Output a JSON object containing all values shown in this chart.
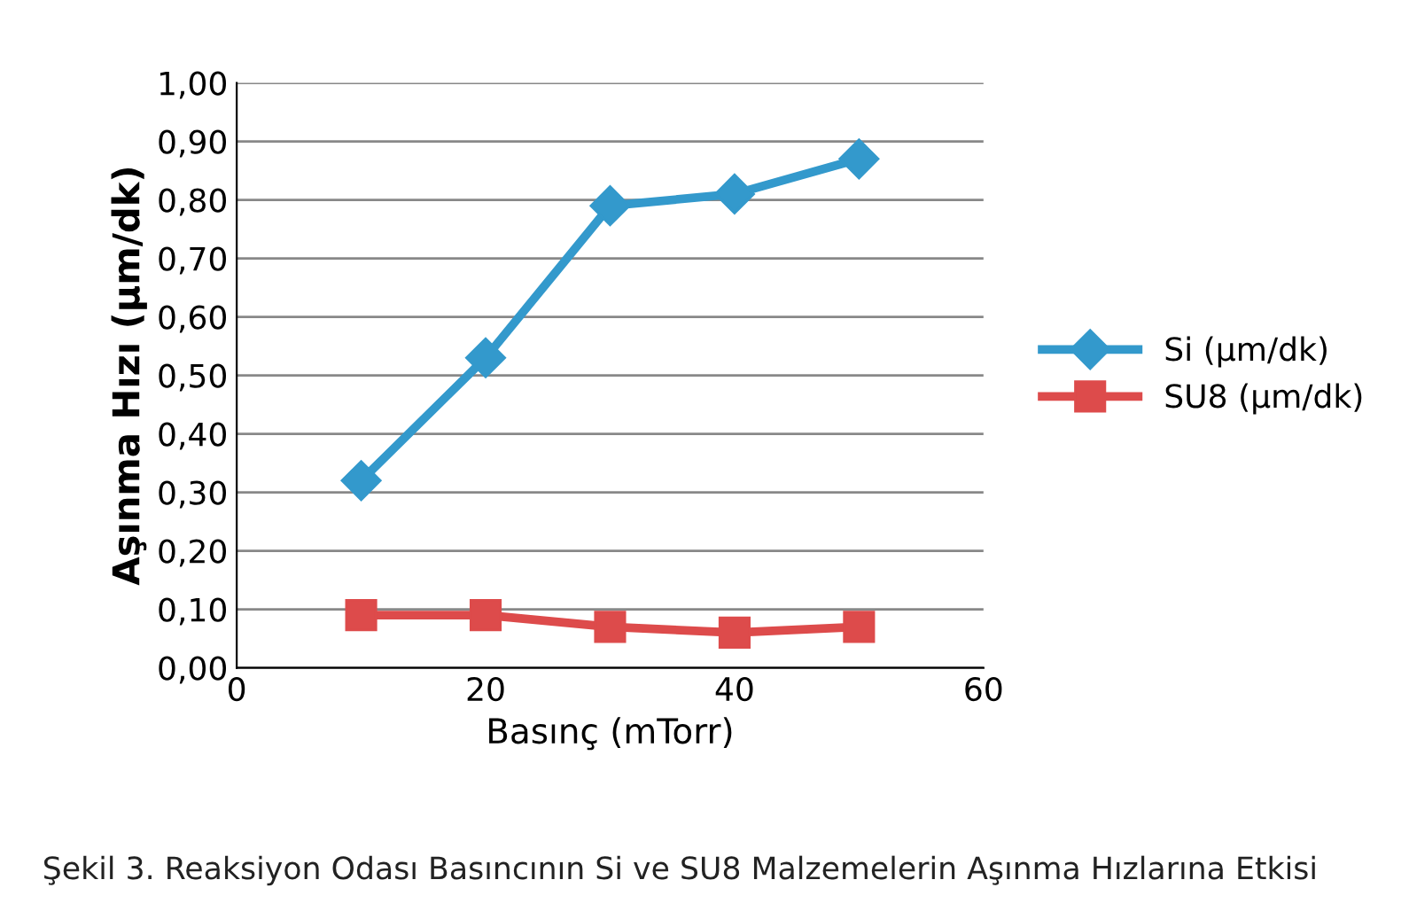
{
  "chart_data": {
    "type": "line",
    "xlabel": "Basınç (mTorr)",
    "ylabel": "Aşınma Hızı (µm/dk)",
    "x": [
      10,
      20,
      30,
      40,
      50
    ],
    "series": [
      {
        "name": "Si (µm/dk)",
        "color": "#3399cc",
        "values": [
          0.32,
          0.53,
          0.79,
          0.81,
          0.87
        ],
        "marker": "diamond"
      },
      {
        "name": "SU8 (µm/dk)",
        "color": "#dd4b4b",
        "values": [
          0.09,
          0.09,
          0.07,
          0.06,
          0.07
        ],
        "marker": "square"
      }
    ],
    "xlim": [
      0,
      60
    ],
    "xticks": [
      0,
      20,
      40,
      60
    ],
    "ylim": [
      0,
      1.0
    ],
    "yticks": [
      {
        "value": 0,
        "label": "0,00"
      },
      {
        "value": 0.1,
        "label": "0,10"
      },
      {
        "value": 0.2,
        "label": "0,20"
      },
      {
        "value": 0.3,
        "label": "0,30"
      },
      {
        "value": 0.4,
        "label": "0,40"
      },
      {
        "value": 0.5,
        "label": "0,50"
      },
      {
        "value": 0.6,
        "label": "0,60"
      },
      {
        "value": 0.7,
        "label": "0,70"
      },
      {
        "value": 0.8,
        "label": "0,80"
      },
      {
        "value": 0.9,
        "label": "0,90"
      },
      {
        "value": 1.0,
        "label": "1,00"
      }
    ],
    "grid": "y",
    "legend": "right",
    "line_style": "solid",
    "annotations": [
      "Şekil 3. Reaksiyon Odası Basıncının Si ve SU8 Malzemelerin Aşınma Hızlarına Etkisi"
    ]
  }
}
